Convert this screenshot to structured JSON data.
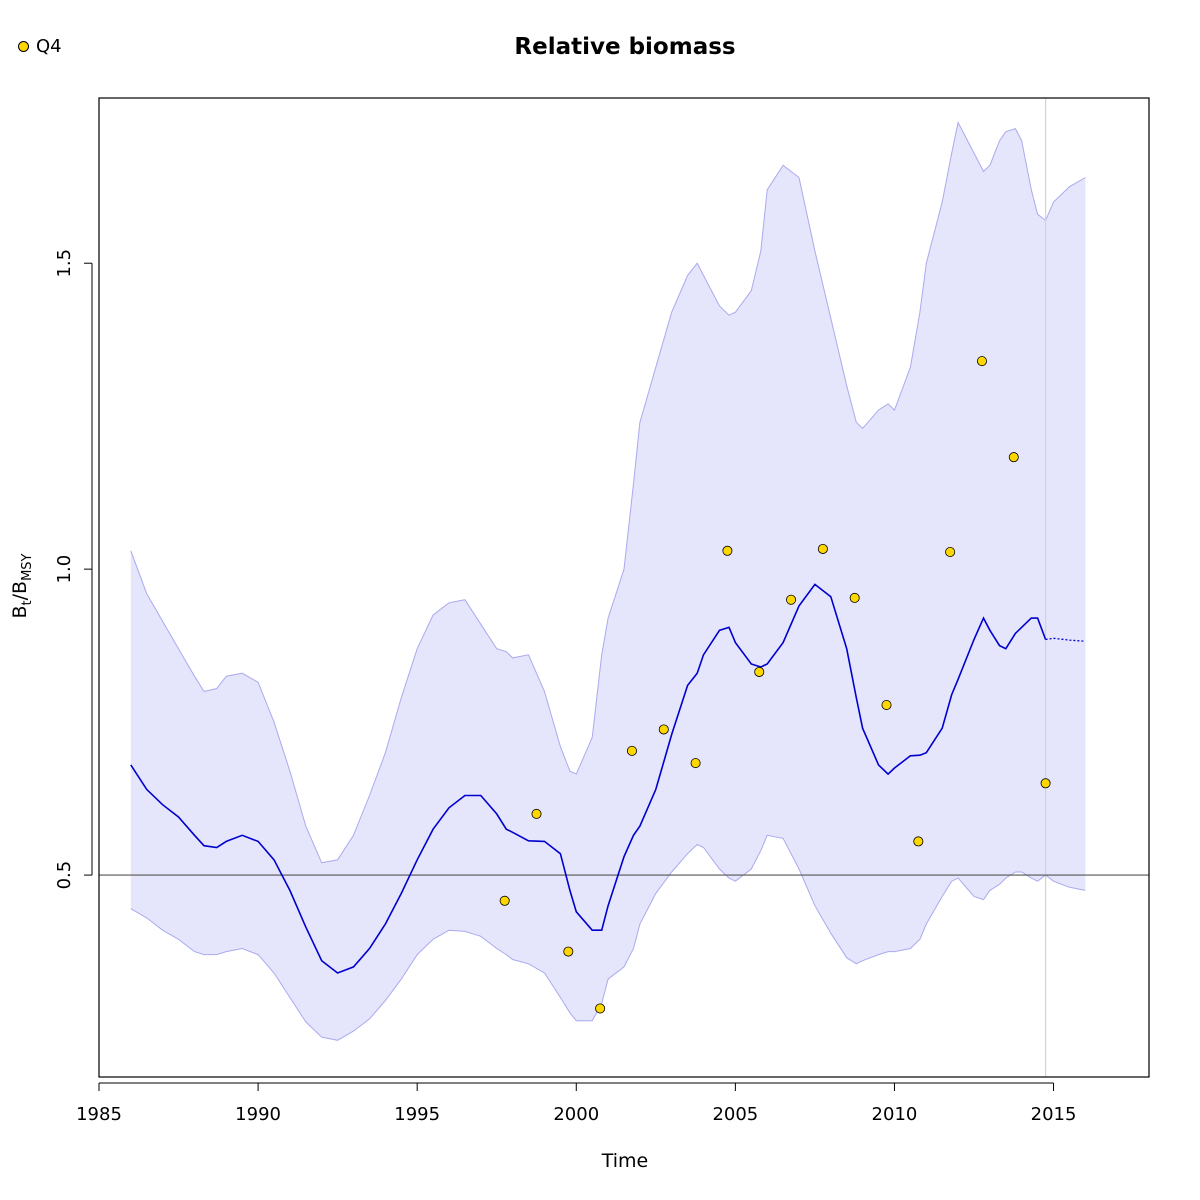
{
  "legend": {
    "label": "Q4",
    "color": "#FFD700"
  },
  "chart_data": {
    "type": "line",
    "title": "Relative biomass",
    "xlabel": "Time",
    "ylabel": {
      "main": "B",
      "sub1": "t",
      "slash": "/",
      "main2": "B",
      "sub2": "MSY"
    },
    "xlim": [
      1985,
      2018
    ],
    "ylim": [
      0.17,
      1.77
    ],
    "xticks": [
      1985,
      1990,
      1995,
      2000,
      2005,
      2010,
      2015
    ],
    "yticks": [
      0.5,
      1.0,
      1.5
    ],
    "ytick_labels": [
      "0.5",
      "1.0",
      "1.5"
    ],
    "reference_hline": 0.5,
    "reference_vline": 2014.75,
    "colors": {
      "line": "#0000CD",
      "band": "#E5E5FC",
      "band_edge": "#AAAAEE",
      "points": "#FFD700",
      "refline": "#555555",
      "vline": "#D3D3D3"
    },
    "series": [
      {
        "kind": "estimate",
        "x": [
          1986.0,
          1986.5,
          1987.0,
          1987.5,
          1988.0,
          1988.3,
          1988.7,
          1989.0,
          1989.5,
          1990.0,
          1990.5,
          1991.0,
          1991.5,
          1992.0,
          1992.5,
          1993.0,
          1993.5,
          1994.0,
          1994.5,
          1995.0,
          1995.5,
          1996.0,
          1996.5,
          1997.0,
          1997.5,
          1997.8,
          1998.0,
          1998.5,
          1999.0,
          1999.5,
          1999.8,
          2000.0,
          2000.5,
          2000.8,
          2001.0,
          2001.5,
          2001.8,
          2002.0,
          2002.5,
          2003.0,
          2003.5,
          2003.8,
          2004.0,
          2004.5,
          2004.8,
          2005.0,
          2005.5,
          2005.8,
          2006.0,
          2006.5,
          2007.0,
          2007.5,
          2008.0,
          2008.5,
          2008.8,
          2009.0,
          2009.5,
          2009.8,
          2010.0,
          2010.5,
          2010.8,
          2011.0,
          2011.5,
          2011.8,
          2012.0,
          2012.5,
          2012.8,
          2013.0,
          2013.3,
          2013.5,
          2013.8,
          2014.0,
          2014.3,
          2014.5,
          2014.75
        ],
        "y": [
          0.68,
          0.64,
          0.615,
          0.595,
          0.565,
          0.548,
          0.545,
          0.555,
          0.565,
          0.555,
          0.525,
          0.475,
          0.415,
          0.36,
          0.34,
          0.35,
          0.38,
          0.42,
          0.47,
          0.525,
          0.575,
          0.61,
          0.63,
          0.63,
          0.6,
          0.575,
          0.57,
          0.556,
          0.555,
          0.535,
          0.475,
          0.44,
          0.41,
          0.41,
          0.45,
          0.53,
          0.565,
          0.58,
          0.64,
          0.73,
          0.81,
          0.83,
          0.86,
          0.9,
          0.905,
          0.88,
          0.845,
          0.84,
          0.845,
          0.88,
          0.94,
          0.975,
          0.955,
          0.87,
          0.79,
          0.74,
          0.68,
          0.665,
          0.675,
          0.695,
          0.696,
          0.7,
          0.74,
          0.795,
          0.82,
          0.885,
          0.92,
          0.9,
          0.875,
          0.87,
          0.895,
          0.905,
          0.92,
          0.92,
          0.885
        ]
      },
      {
        "kind": "forecast",
        "x": [
          2014.75,
          2015.0,
          2015.5,
          2016.0
        ],
        "y": [
          0.885,
          0.887,
          0.884,
          0.882
        ]
      },
      {
        "kind": "upper",
        "x": [
          1986.0,
          1986.5,
          1987.0,
          1987.5,
          1988.0,
          1988.3,
          1988.7,
          1989.0,
          1989.5,
          1990.0,
          1990.5,
          1991.0,
          1991.5,
          1992.0,
          1992.5,
          1993.0,
          1993.5,
          1994.0,
          1994.5,
          1995.0,
          1995.5,
          1996.0,
          1996.5,
          1997.0,
          1997.5,
          1997.8,
          1998.0,
          1998.5,
          1999.0,
          1999.5,
          1999.8,
          2000.0,
          2000.5,
          2000.8,
          2001.0,
          2001.5,
          2001.8,
          2002.0,
          2002.5,
          2003.0,
          2003.5,
          2003.8,
          2004.0,
          2004.5,
          2004.8,
          2005.0,
          2005.5,
          2005.8,
          2006.0,
          2006.5,
          2007.0,
          2007.5,
          2008.0,
          2008.5,
          2008.8,
          2009.0,
          2009.5,
          2009.8,
          2010.0,
          2010.5,
          2010.8,
          2011.0,
          2011.5,
          2011.8,
          2012.0,
          2012.5,
          2012.8,
          2013.0,
          2013.3,
          2013.5,
          2013.8,
          2014.0,
          2014.3,
          2014.5,
          2014.75,
          2015.0,
          2015.5,
          2016.0
        ],
        "y": [
          1.03,
          0.96,
          0.915,
          0.87,
          0.825,
          0.8,
          0.805,
          0.825,
          0.83,
          0.815,
          0.75,
          0.67,
          0.58,
          0.52,
          0.525,
          0.565,
          0.63,
          0.7,
          0.79,
          0.87,
          0.925,
          0.945,
          0.95,
          0.91,
          0.87,
          0.865,
          0.855,
          0.86,
          0.8,
          0.71,
          0.67,
          0.665,
          0.725,
          0.86,
          0.92,
          1.0,
          1.14,
          1.24,
          1.33,
          1.42,
          1.48,
          1.5,
          1.48,
          1.43,
          1.415,
          1.42,
          1.455,
          1.52,
          1.62,
          1.66,
          1.64,
          1.52,
          1.41,
          1.3,
          1.24,
          1.23,
          1.26,
          1.27,
          1.26,
          1.33,
          1.42,
          1.5,
          1.6,
          1.68,
          1.73,
          1.68,
          1.65,
          1.66,
          1.7,
          1.715,
          1.72,
          1.7,
          1.62,
          1.58,
          1.57,
          1.6,
          1.625,
          1.64
        ]
      },
      {
        "kind": "lower",
        "x": [
          1986.0,
          1986.5,
          1987.0,
          1987.5,
          1988.0,
          1988.3,
          1988.7,
          1989.0,
          1989.5,
          1990.0,
          1990.5,
          1991.0,
          1991.5,
          1992.0,
          1992.5,
          1993.0,
          1993.5,
          1994.0,
          1994.5,
          1995.0,
          1995.5,
          1996.0,
          1996.5,
          1997.0,
          1997.5,
          1997.8,
          1998.0,
          1998.5,
          1999.0,
          1999.5,
          1999.8,
          2000.0,
          2000.5,
          2000.8,
          2001.0,
          2001.5,
          2001.8,
          2002.0,
          2002.5,
          2003.0,
          2003.5,
          2003.8,
          2004.0,
          2004.5,
          2004.8,
          2005.0,
          2005.5,
          2005.8,
          2006.0,
          2006.5,
          2007.0,
          2007.5,
          2008.0,
          2008.5,
          2008.8,
          2009.0,
          2009.5,
          2009.8,
          2010.0,
          2010.5,
          2010.8,
          2011.0,
          2011.5,
          2011.8,
          2012.0,
          2012.5,
          2012.8,
          2013.0,
          2013.3,
          2013.5,
          2013.8,
          2014.0,
          2014.3,
          2014.5,
          2014.75,
          2015.0,
          2015.5,
          2016.0
        ],
        "y": [
          0.445,
          0.43,
          0.41,
          0.395,
          0.375,
          0.37,
          0.37,
          0.375,
          0.38,
          0.37,
          0.34,
          0.3,
          0.26,
          0.235,
          0.23,
          0.245,
          0.265,
          0.295,
          0.33,
          0.37,
          0.395,
          0.41,
          0.408,
          0.4,
          0.38,
          0.37,
          0.362,
          0.355,
          0.34,
          0.3,
          0.275,
          0.262,
          0.262,
          0.29,
          0.33,
          0.35,
          0.38,
          0.42,
          0.47,
          0.505,
          0.535,
          0.55,
          0.545,
          0.51,
          0.495,
          0.49,
          0.51,
          0.54,
          0.565,
          0.56,
          0.51,
          0.45,
          0.405,
          0.365,
          0.355,
          0.36,
          0.37,
          0.375,
          0.375,
          0.38,
          0.395,
          0.42,
          0.465,
          0.49,
          0.495,
          0.465,
          0.46,
          0.475,
          0.485,
          0.495,
          0.505,
          0.505,
          0.495,
          0.49,
          0.5,
          0.49,
          0.48,
          0.475
        ]
      }
    ],
    "observations": {
      "name": "Q4",
      "x": [
        1997.75,
        1998.75,
        1999.75,
        2000.75,
        2001.75,
        2002.75,
        2003.75,
        2004.75,
        2005.75,
        2006.75,
        2007.75,
        2008.75,
        2009.75,
        2010.75,
        2011.75,
        2012.75,
        2013.75,
        2014.75
      ],
      "y": [
        0.458,
        0.6,
        0.375,
        0.282,
        0.703,
        0.738,
        0.683,
        1.03,
        0.832,
        0.95,
        1.033,
        0.953,
        0.778,
        0.555,
        1.028,
        1.34,
        1.183,
        0.65
      ]
    }
  }
}
